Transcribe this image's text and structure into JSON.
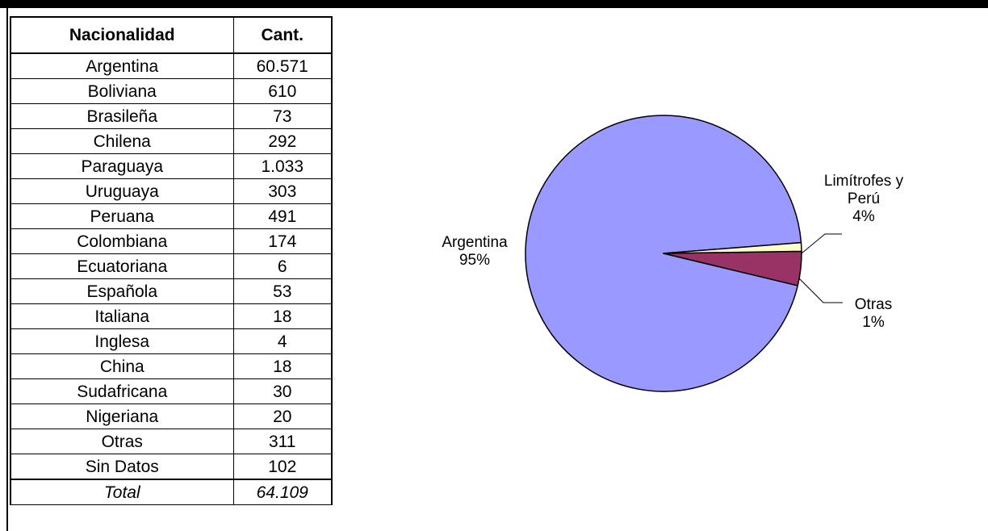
{
  "table": {
    "headers": {
      "name": "Nacionalidad",
      "qty": "Cant."
    },
    "rows": [
      {
        "name": "Argentina",
        "qty": "60.571"
      },
      {
        "name": "Boliviana",
        "qty": "610"
      },
      {
        "name": "Brasileña",
        "qty": "73"
      },
      {
        "name": "Chilena",
        "qty": "292"
      },
      {
        "name": "Paraguaya",
        "qty": "1.033"
      },
      {
        "name": "Uruguaya",
        "qty": "303"
      },
      {
        "name": "Peruana",
        "qty": "491"
      },
      {
        "name": "Colombiana",
        "qty": "174"
      },
      {
        "name": "Ecuatoriana",
        "qty": "6"
      },
      {
        "name": "Española",
        "qty": "53"
      },
      {
        "name": "Italiana",
        "qty": "18"
      },
      {
        "name": "Inglesa",
        "qty": "4"
      },
      {
        "name": "China",
        "qty": "18"
      },
      {
        "name": "Sudafricana",
        "qty": "30"
      },
      {
        "name": "Nigeriana",
        "qty": "20"
      },
      {
        "name": "Otras",
        "qty": "311"
      },
      {
        "name": "Sin Datos",
        "qty": "102"
      }
    ],
    "total": {
      "name": "Total",
      "qty": "64.109"
    }
  },
  "chart_data": {
    "type": "pie",
    "slices": [
      {
        "label_lines": [
          "Argentina"
        ],
        "percent_label": "95%",
        "value": 95,
        "color": "#9999ff"
      },
      {
        "label_lines": [
          "Limítrofes y",
          "Perú"
        ],
        "percent_label": "4%",
        "value": 4,
        "color": "#993366"
      },
      {
        "label_lines": [
          "Otras"
        ],
        "percent_label": "1%",
        "value": 1,
        "color": "#ffffcc"
      }
    ],
    "legend": "none"
  }
}
